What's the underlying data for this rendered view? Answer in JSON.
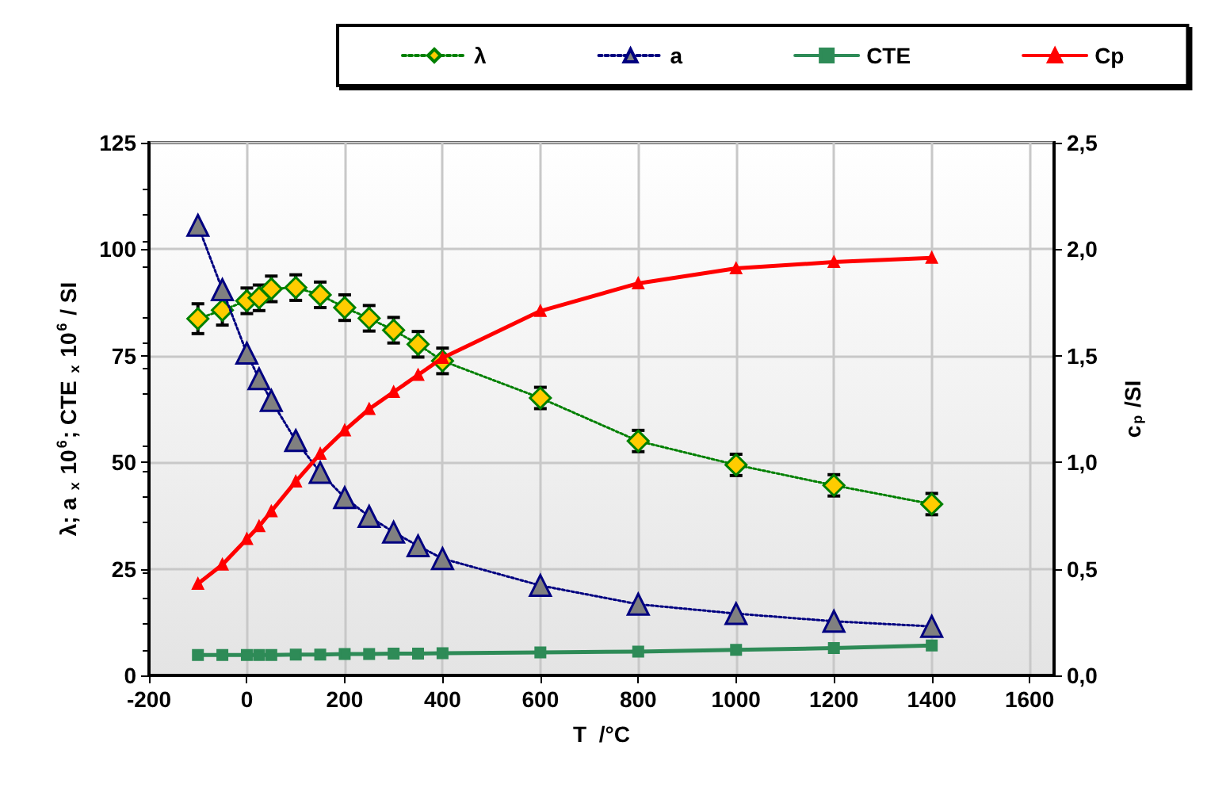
{
  "chart_data": {
    "type": "line",
    "xlabel": "T  /°C",
    "ylabel": "λ; a $_{x}$ 10$^{6}$; CTE $_{x}$ 10$^{6}$ / SI",
    "y2label": "c$_{p}$ /SI",
    "x": [
      -100,
      -50,
      0,
      25,
      50,
      100,
      150,
      200,
      250,
      300,
      350,
      400,
      600,
      800,
      1000,
      1200,
      1400
    ],
    "xlim": [
      -200,
      1650
    ],
    "xticks": [
      -200,
      0,
      200,
      400,
      600,
      800,
      1000,
      1200,
      1400,
      1600
    ],
    "ylim": [
      0,
      125
    ],
    "yticks": [
      0,
      25,
      50,
      75,
      100,
      125
    ],
    "y2lim": [
      0,
      2.5
    ],
    "y2ticks": [
      {
        "value": 0,
        "label": "0,0"
      },
      {
        "value": 0.5,
        "label": "0,5"
      },
      {
        "value": 1,
        "label": "1,0"
      },
      {
        "value": 1.5,
        "label": "1,5"
      },
      {
        "value": 2,
        "label": "2,0"
      },
      {
        "value": 2.5,
        "label": "2,5"
      }
    ],
    "grid": true,
    "legend": "top",
    "series": [
      {
        "name": "λ",
        "color": "#ffcc00",
        "marker": "diamond",
        "line_style": "dotted",
        "values": [
          83.7,
          85.7,
          87.9,
          88.6,
          90.7,
          91,
          89.3,
          86.3,
          83.8,
          81,
          77.7,
          73.8,
          65.1,
          55,
          49.4,
          44.6,
          40.2
        ],
        "errors": [
          3.5,
          3.5,
          3,
          3,
          3,
          3,
          3,
          3,
          3,
          3,
          3,
          3,
          2.5,
          2.5,
          2.5,
          2.5,
          2.5
        ]
      },
      {
        "name": "a",
        "color": "#808080",
        "marker": "triangle",
        "line_style": "dotted",
        "values": [
          105.6,
          90.5,
          75.6,
          69.6,
          64.5,
          55.1,
          47.6,
          41.7,
          37.3,
          33.6,
          30.4,
          27.4,
          21.1,
          16.7,
          14.5,
          12.7,
          11.5
        ]
      },
      {
        "name": "CTE",
        "color": "#2e8b57",
        "marker": "square",
        "line_style": "solid",
        "values": [
          4.8,
          4.8,
          4.8,
          4.8,
          4.8,
          4.9,
          4.9,
          5,
          5,
          5.1,
          5.1,
          5.2,
          5.4,
          5.6,
          6,
          6.4,
          7
        ]
      },
      {
        "name": "Cp",
        "color": "#ff0000",
        "marker": "triangle",
        "line_style": "solid",
        "axis": "y2",
        "values": [
          0.43,
          0.52,
          0.64,
          0.7,
          0.77,
          0.91,
          1.04,
          1.15,
          1.25,
          1.33,
          1.41,
          1.49,
          1.71,
          1.84,
          1.91,
          1.94,
          1.96
        ]
      }
    ]
  }
}
